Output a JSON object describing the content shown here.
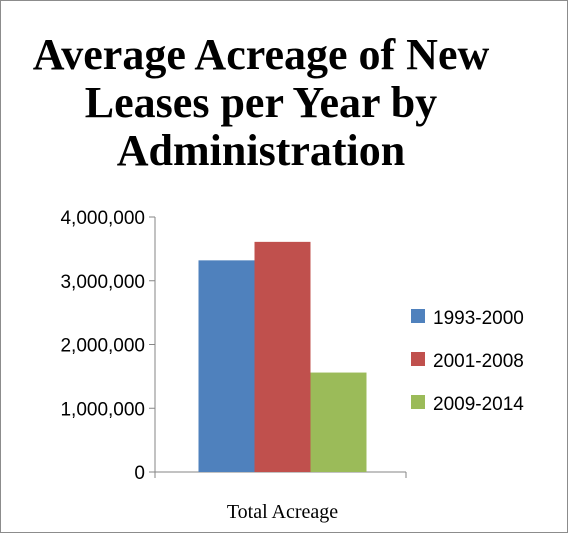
{
  "chart_data": {
    "type": "bar",
    "title": "Average Acreage of New Leases per Year by Administration",
    "categories": [
      "Total Acreage"
    ],
    "series": [
      {
        "name": "1993-2000",
        "values": [
          3320000
        ],
        "color": "#4f81bd"
      },
      {
        "name": "2001-2008",
        "values": [
          3610000
        ],
        "color": "#c0504d"
      },
      {
        "name": "2009-2014",
        "values": [
          1560000
        ],
        "color": "#9bbb59"
      }
    ],
    "xlabel": "",
    "ylabel": "",
    "ylim": [
      0,
      4000000
    ],
    "yticks": [
      "0",
      "1,000,000",
      "2,000,000",
      "3,000,000",
      "4,000,000"
    ],
    "grid": false,
    "legend": "right"
  }
}
